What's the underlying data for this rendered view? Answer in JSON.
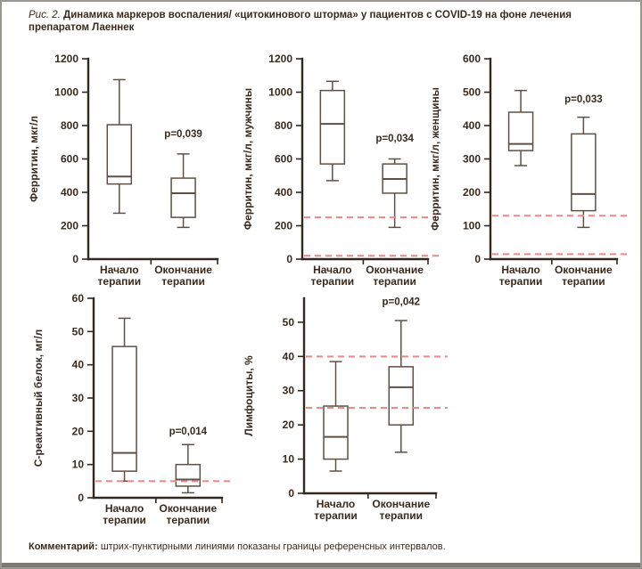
{
  "figure": {
    "label": "Рис. 2.",
    "title": "Динамика маркеров воспаления/ «цитокинового шторма» у пациентов с COVID-19 на фоне лечения препаратом Лаеннек",
    "comment_label": "Комментарий:",
    "comment_text": "штрих-пунктирными линиями показаны границы референсных интервалов."
  },
  "colors": {
    "ink": "#3a2a1c",
    "axis": "#33281d",
    "box_stroke": "#5e5044",
    "ref_line": "#f08585",
    "border": "#9a9792",
    "bottom_bar": "#7d7a75",
    "background": "#ffffff"
  },
  "chart_data": [
    {
      "type": "box",
      "slug": "ferritin-total",
      "ylabel": "Ферритин, мкг/л",
      "ylim": [
        0,
        1200
      ],
      "yticks": [
        0,
        200,
        400,
        600,
        800,
        1000,
        1200
      ],
      "categories": [
        [
          "Начало",
          "терапии"
        ],
        [
          "Окончание",
          "терапии"
        ]
      ],
      "boxes": [
        {
          "low": 275,
          "q1": 450,
          "median": 495,
          "q3": 805,
          "high": 1075
        },
        {
          "low": 190,
          "q1": 250,
          "median": 395,
          "q3": 485,
          "high": 630
        }
      ],
      "p_label": {
        "text": "p=0,039",
        "y": 730
      },
      "ref_lines": []
    },
    {
      "type": "box",
      "slug": "ferritin-men",
      "ylabel": "Ферритин, мкг/л, мужчины",
      "ylim": [
        0,
        1200
      ],
      "yticks": [
        0,
        200,
        400,
        600,
        800,
        1000,
        1200
      ],
      "categories": [
        [
          "Начало",
          "терапии"
        ],
        [
          "Окончание",
          "терапии"
        ]
      ],
      "boxes": [
        {
          "low": 470,
          "q1": 570,
          "median": 810,
          "q3": 1010,
          "high": 1065
        },
        {
          "low": 190,
          "q1": 395,
          "median": 480,
          "q3": 570,
          "high": 600
        }
      ],
      "p_label": {
        "text": "p=0,034",
        "y": 705
      },
      "ref_lines": [
        250,
        20
      ]
    },
    {
      "type": "box",
      "slug": "ferritin-women",
      "ylabel": "Ферритин, мкг/л, женщины",
      "ylim": [
        0,
        600
      ],
      "yticks": [
        0,
        100,
        200,
        300,
        400,
        500,
        600
      ],
      "categories": [
        [
          "Начало",
          "терапии"
        ],
        [
          "Окончание",
          "терапии"
        ]
      ],
      "boxes": [
        {
          "low": 280,
          "q1": 325,
          "median": 345,
          "q3": 440,
          "high": 505
        },
        {
          "low": 95,
          "q1": 145,
          "median": 195,
          "q3": 375,
          "high": 425
        }
      ],
      "p_label": {
        "text": "p=0,033",
        "y": 470
      },
      "ref_lines": [
        130,
        15
      ]
    },
    {
      "type": "box",
      "slug": "crp",
      "ylabel": "С-реактивный белок, мг/л",
      "ylim": [
        0,
        60
      ],
      "yticks": [
        0,
        10,
        20,
        30,
        40,
        50,
        60
      ],
      "categories": [
        [
          "Начало",
          "терапии"
        ],
        [
          "Окончание",
          "терапии"
        ]
      ],
      "boxes": [
        {
          "low": 5,
          "q1": 8,
          "median": 13.5,
          "q3": 45.5,
          "high": 54
        },
        {
          "low": 1.5,
          "q1": 3.5,
          "median": 5.5,
          "q3": 10,
          "high": 16
        }
      ],
      "p_label": {
        "text": "p=0,014",
        "y": 19
      },
      "ref_lines": [
        5
      ]
    },
    {
      "type": "box",
      "slug": "lymphocytes",
      "ylabel": "Лимфоциты, %",
      "ylim": [
        0,
        57
      ],
      "yticks": [
        0,
        10,
        20,
        30,
        40,
        50
      ],
      "categories": [
        [
          "Начало",
          "терапии"
        ],
        [
          "Окончание",
          "терапии"
        ]
      ],
      "boxes": [
        {
          "low": 6.5,
          "q1": 10,
          "median": 16.5,
          "q3": 25.5,
          "high": 38.5
        },
        {
          "low": 12,
          "q1": 20,
          "median": 31,
          "q3": 37,
          "high": 50.5
        }
      ],
      "p_label": {
        "text": "p=0,042",
        "y": 55
      },
      "ref_lines": [
        40,
        25
      ]
    }
  ]
}
